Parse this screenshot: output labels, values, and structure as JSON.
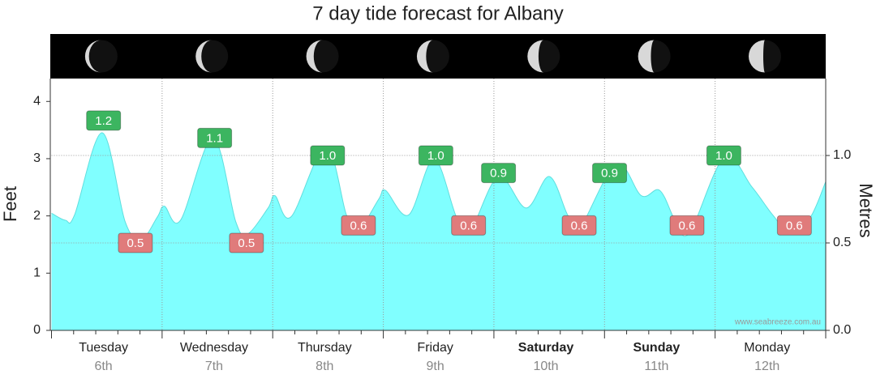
{
  "chart_data": {
    "type": "area",
    "title": "7 day tide forecast for Albany",
    "ylabel": "Feet",
    "y2label": "Metres",
    "watermark": "www.seabreeze.com.au",
    "days": [
      "Tuesday",
      "Wednesday",
      "Thursday",
      "Friday",
      "Saturday",
      "Sunday",
      "Monday"
    ],
    "dates": [
      "6th",
      "7th",
      "8th",
      "9th",
      "10th",
      "11th",
      "12th"
    ],
    "bold": [
      false,
      false,
      false,
      false,
      true,
      true,
      false
    ],
    "xlim": [
      0,
      168
    ],
    "ylim": [
      0,
      4.4
    ],
    "yticks": [
      0,
      1,
      2,
      3,
      4
    ],
    "y2lim": [
      0,
      1.44
    ],
    "y2ticks": [
      {
        "value": 0,
        "label": "0.0"
      },
      {
        "value": 0.5,
        "label": "0.5"
      },
      {
        "value": 1,
        "label": "1.0"
      }
    ],
    "grid": true,
    "series": [
      {
        "axis": "y2",
        "color": "#80ffff",
        "x": [
          0,
          3,
          5,
          11,
          16,
          19.5,
          23,
          24.5,
          28,
          35,
          40,
          42.5,
          47,
          48.5,
          52,
          59.5,
          64,
          66.5,
          71,
          72.5,
          77.5,
          83,
          88,
          91,
          97,
          103,
          108,
          112,
          114.5,
          122.5,
          128,
          132,
          135.5,
          138.5,
          146,
          152,
          156.5,
          160,
          164.5,
          168
        ],
        "values": [
          0.67,
          0.63,
          0.66,
          1.13,
          0.62,
          0.52,
          0.65,
          0.71,
          0.63,
          1.1,
          0.62,
          0.55,
          0.7,
          0.77,
          0.65,
          1.05,
          0.66,
          0.57,
          0.75,
          0.8,
          0.66,
          0.98,
          0.64,
          0.58,
          0.88,
          0.7,
          0.88,
          0.66,
          0.58,
          0.95,
          0.77,
          0.8,
          0.62,
          0.56,
          0.99,
          0.82,
          0.66,
          0.57,
          0.64,
          0.85
        ]
      }
    ],
    "tide_labels": [
      {
        "color": "#3cb560",
        "x": [
          11.3,
          35.4,
          59.9,
          83.4,
          97,
          121.1,
          145.9
        ],
        "values": [
          1.2,
          1.1,
          1,
          1,
          0.9,
          0.9,
          1
        ],
        "value_labels": [
          "1.2",
          "1.1",
          "1.0",
          "1.0",
          "0.9",
          "0.9",
          "1.0"
        ]
      },
      {
        "color": "#e07b7b",
        "x": [
          18.2,
          42.3,
          66.6,
          90.5,
          114.5,
          137.9,
          161.2
        ],
        "values": [
          0.5,
          0.5,
          0.6,
          0.6,
          0.6,
          0.6,
          0.6
        ],
        "value_labels": [
          "0.5",
          "0.5",
          "0.6",
          "0.6",
          "0.6",
          "0.6",
          "0.6"
        ]
      }
    ]
  }
}
